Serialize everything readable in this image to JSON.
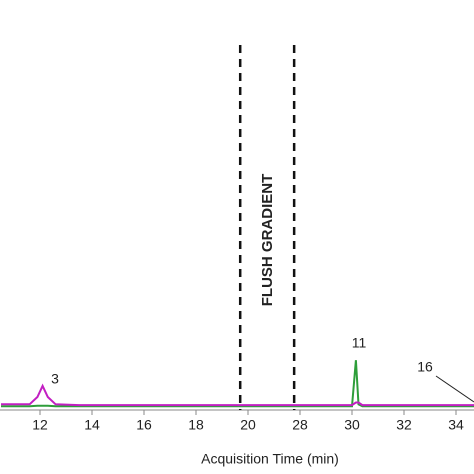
{
  "chart_data": {
    "type": "line",
    "x_label": "Acquisition Time (min)",
    "annotation": "FLUSH GRADIENT",
    "peak_labels": [
      "3",
      "11",
      "16"
    ],
    "x": [
      10.5,
      11.6,
      11.9,
      12.1,
      12.3,
      12.6,
      13.5,
      20,
      28,
      30.0,
      30.15,
      30.25,
      30.4,
      34.7
    ],
    "series": [
      {
        "name": "trace-green",
        "color": "#2e9e3a",
        "values": [
          0.5,
          0.5,
          0.6,
          0.6,
          0.6,
          0.5,
          0.5,
          0.5,
          0.5,
          0.5,
          13,
          1,
          0.5,
          0.5
        ]
      },
      {
        "name": "trace-magenta",
        "color": "#c21fc2",
        "values": [
          1,
          1,
          3,
          6,
          3,
          1,
          0.8,
          0.8,
          0.8,
          0.8,
          1.5,
          1.5,
          0.8,
          0.8
        ]
      }
    ],
    "xlim": [
      10.5,
      34.7
    ],
    "axis_break": [
      20,
      28
    ],
    "xticks": [
      12,
      14,
      16,
      18,
      20,
      28,
      30,
      32,
      34
    ],
    "ylim": [
      0,
      100
    ],
    "dashed_lines": [
      19.7,
      27.1
    ]
  }
}
